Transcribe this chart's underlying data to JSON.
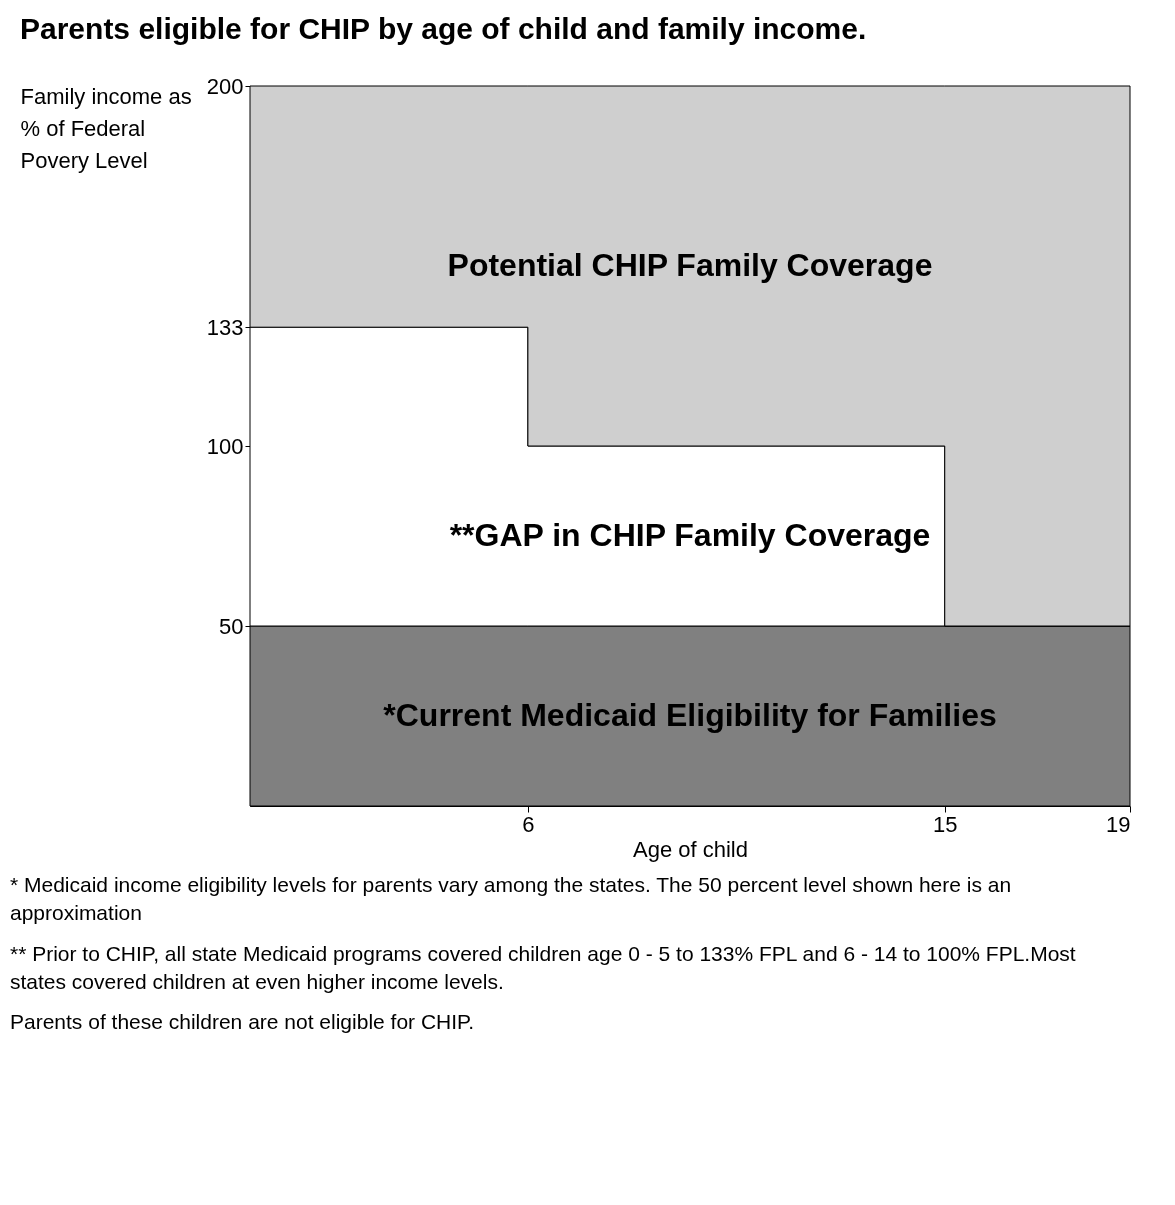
{
  "chart_data": {
    "type": "area",
    "stacked": true,
    "title": "Parents  eligible for CHIP by age of child and family income.",
    "xlabel": "Age of child",
    "ylabel": "Family income as % of Federal Povery Level",
    "x": [
      0,
      6,
      6,
      15,
      15,
      19
    ],
    "series": [
      {
        "name": "*Current Medicaid Eligibility for Families",
        "color": "#808080",
        "values": [
          50,
          50,
          50,
          50,
          50,
          50
        ]
      },
      {
        "name": "**GAP in CHIP Family Coverage",
        "color": "#ffffff",
        "values": [
          83,
          83,
          50,
          50,
          0,
          0
        ]
      },
      {
        "name": "Potential CHIP Family Coverage",
        "color": "#cfcfcf",
        "values": [
          67,
          67,
          100,
          100,
          150,
          150
        ]
      }
    ],
    "xlim": [
      0,
      19
    ],
    "xticks": [
      6,
      15,
      19
    ],
    "ylim": [
      0,
      200
    ],
    "yticks": [
      50,
      100,
      133,
      200
    ],
    "annotations": [
      "* Medicaid income eligibility levels for parents vary among the states. The 50 percent level shown here is an approximation",
      "** Prior to CHIP, all state Medicaid programs covered children age 0 - 5 to 133% FPL and 6 - 14 to 100% FPL.Most states covered children at even higher income levels.",
      "Parents of these children are not eligible for CHIP."
    ]
  }
}
